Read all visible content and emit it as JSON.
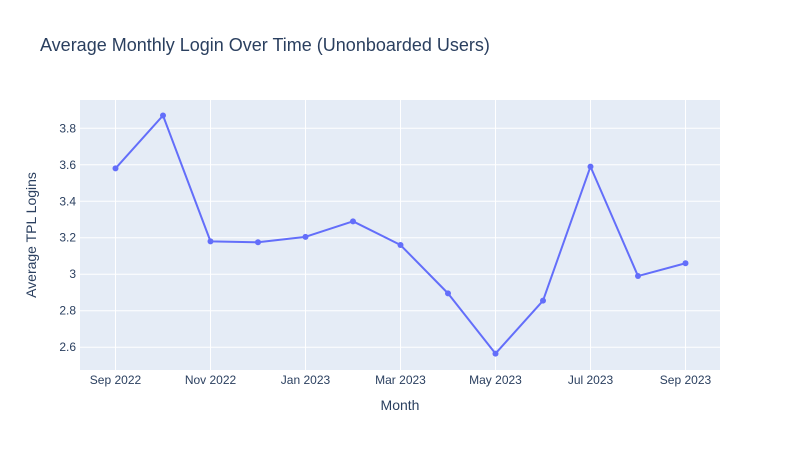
{
  "chart_data": {
    "type": "line",
    "title": "Average Monthly Login Over Time (Unonboarded Users)",
    "xlabel": "Month",
    "ylabel": "Average TPL Logins",
    "x": [
      "2022-09",
      "2022-10",
      "2022-11",
      "2022-12",
      "2023-01",
      "2023-02",
      "2023-03",
      "2023-04",
      "2023-05",
      "2023-06",
      "2023-07",
      "2023-08",
      "2023-09"
    ],
    "series": [
      {
        "values": [
          3.58,
          3.87,
          3.18,
          3.175,
          3.205,
          3.29,
          3.16,
          2.895,
          2.565,
          2.855,
          3.59,
          2.99,
          3.06
        ]
      }
    ],
    "x_ticks": [
      {
        "x": "2022-09",
        "label": "Sep 2022"
      },
      {
        "x": "2022-11",
        "label": "Nov 2022"
      },
      {
        "x": "2023-01",
        "label": "Jan 2023"
      },
      {
        "x": "2023-03",
        "label": "Mar 2023"
      },
      {
        "x": "2023-05",
        "label": "May 2023"
      },
      {
        "x": "2023-07",
        "label": "Jul 2023"
      },
      {
        "x": "2023-09",
        "label": "Sep 2023"
      }
    ],
    "y_ticks": [
      {
        "value": 2.6,
        "label": "2.6"
      },
      {
        "value": 2.8,
        "label": "2.8"
      },
      {
        "value": 3.0,
        "label": "3"
      },
      {
        "value": 3.2,
        "label": "3.2"
      },
      {
        "value": 3.4,
        "label": "3.4"
      },
      {
        "value": 3.6,
        "label": "3.6"
      },
      {
        "value": 3.8,
        "label": "3.8"
      }
    ],
    "ylim": [
      2.475,
      3.955
    ],
    "grid": true,
    "colors": {
      "line": "#636efa",
      "plot_bg": "#e5ecf6",
      "grid": "#ffffff",
      "text": "#2a3f5f"
    }
  }
}
